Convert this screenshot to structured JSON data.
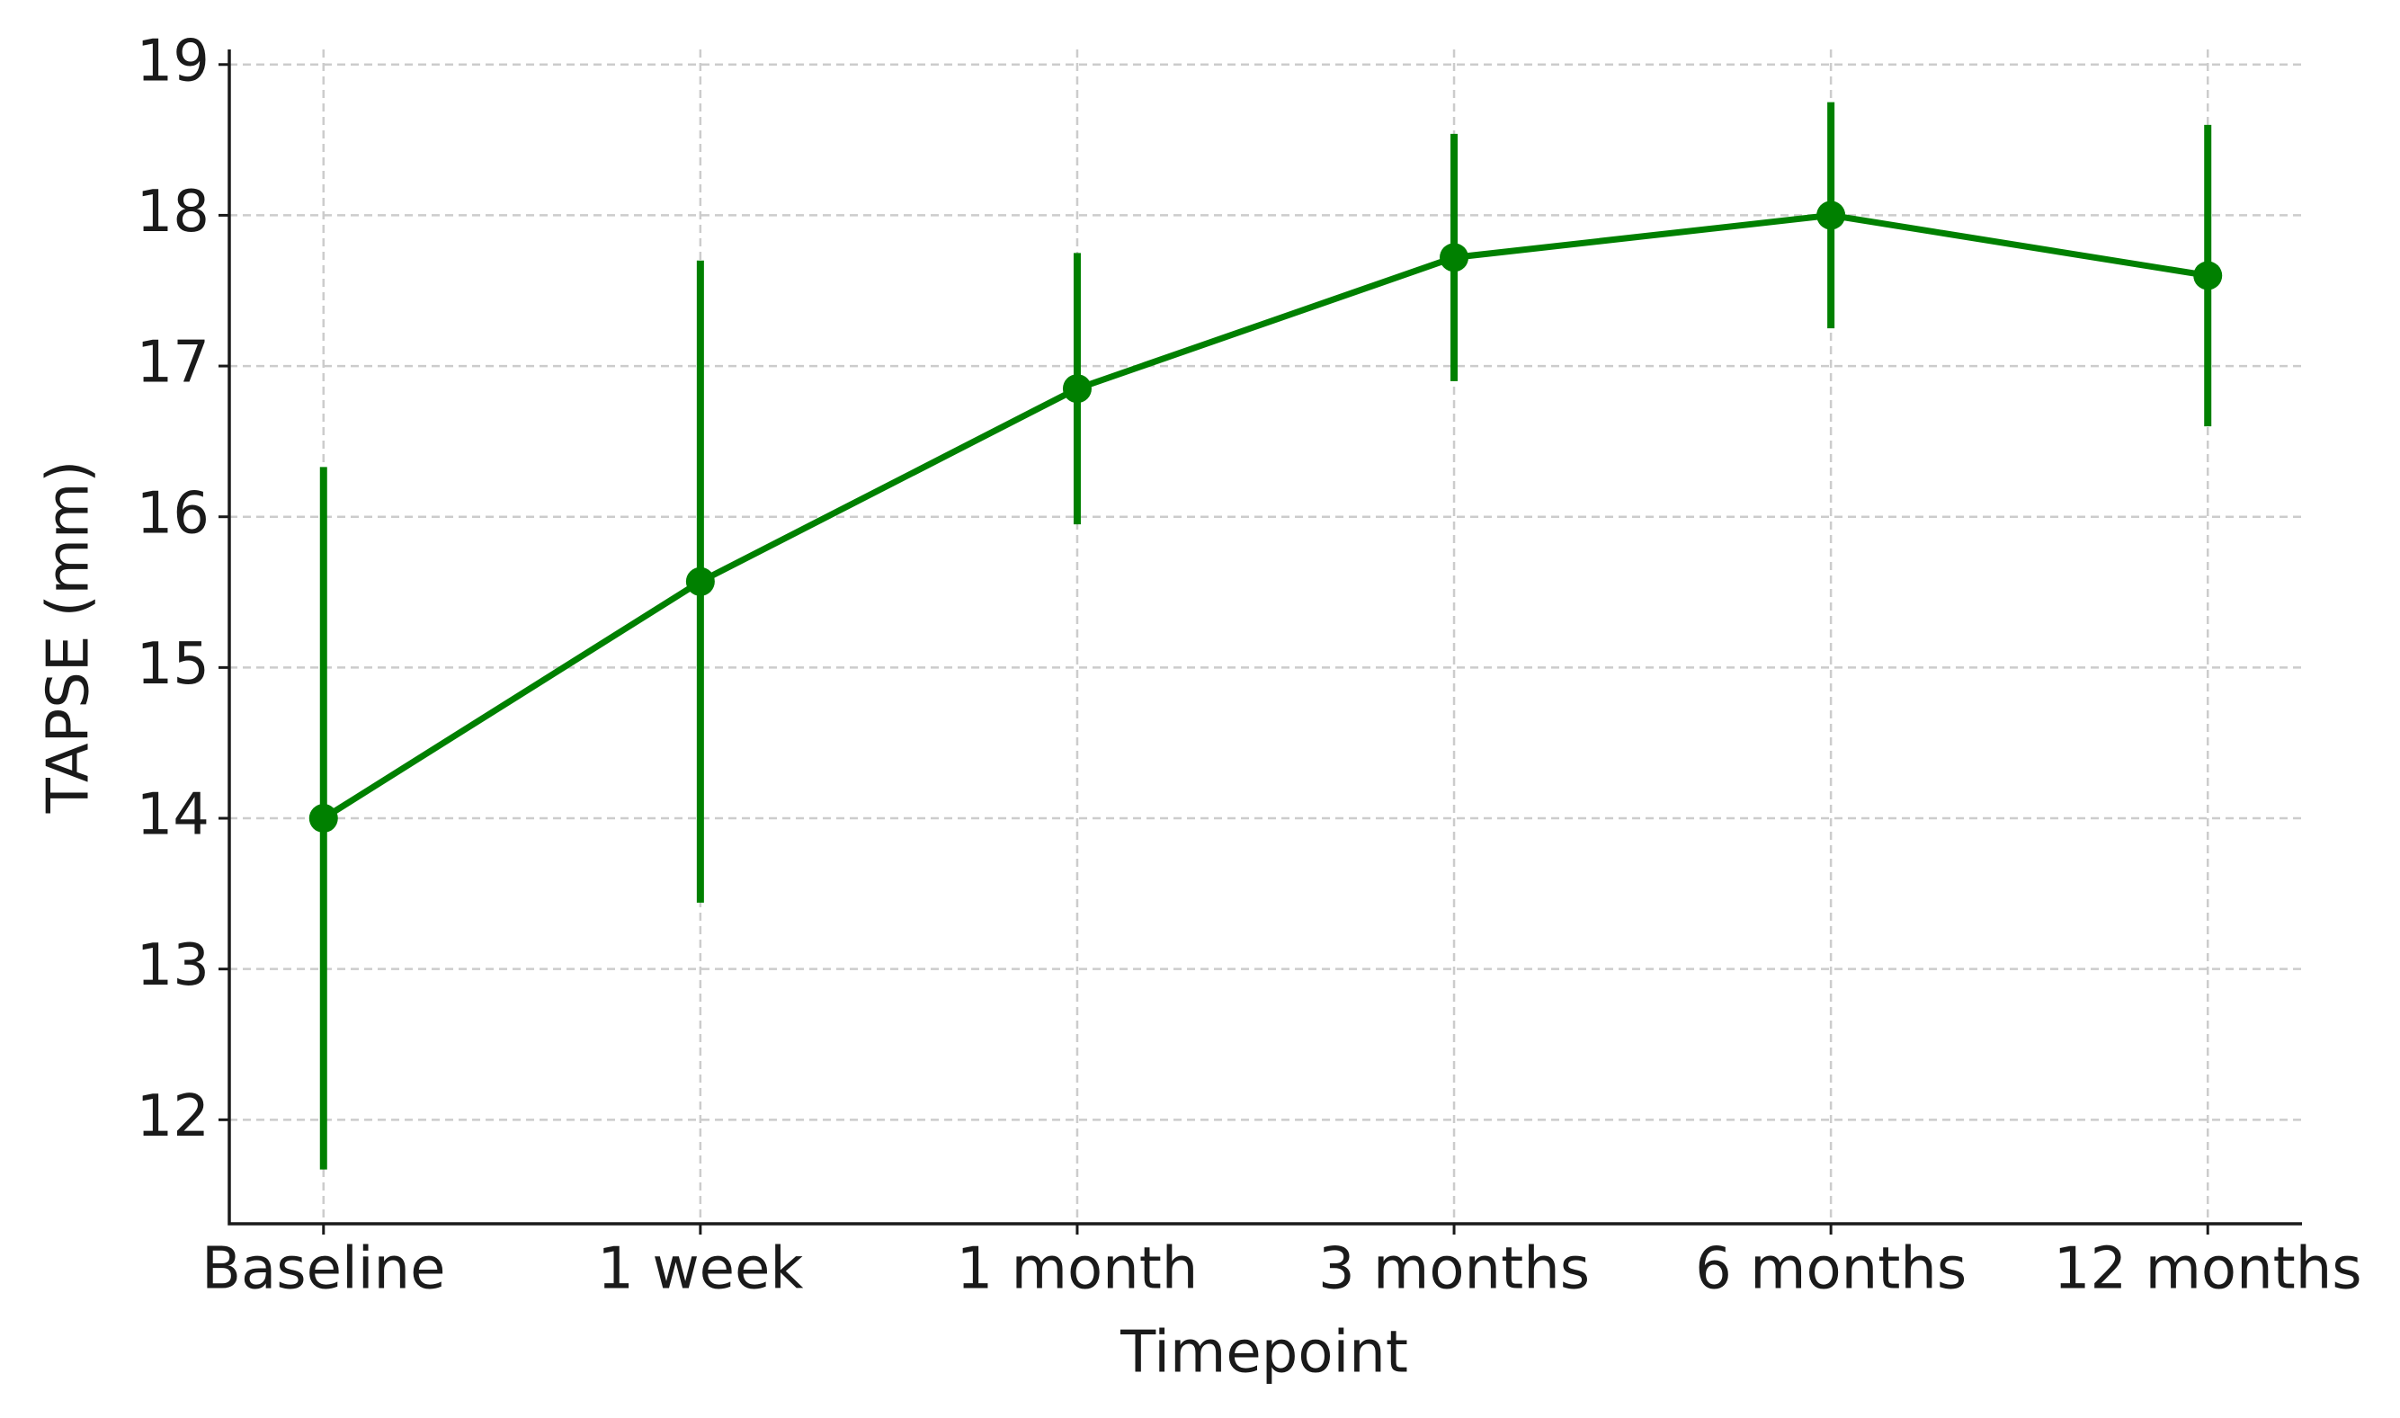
{
  "chart_data": {
    "type": "line",
    "x_label": "Timepoint",
    "y_label": "TAPSE (mm)",
    "categories": [
      "Baseline",
      "1 week",
      "1 month",
      "3 months",
      "6 months",
      "12 months"
    ],
    "series": [
      {
        "name": "TAPSE",
        "color": "#008000",
        "values": [
          14.0,
          15.57,
          16.85,
          17.72,
          18.0,
          17.6
        ],
        "errors": [
          2.33,
          2.13,
          0.9,
          0.82,
          0.75,
          1.0
        ]
      }
    ],
    "ylim": [
      11.31,
      19.1
    ],
    "yticks": [
      12,
      13,
      14,
      15,
      16,
      17,
      18,
      19
    ],
    "grid": true
  }
}
